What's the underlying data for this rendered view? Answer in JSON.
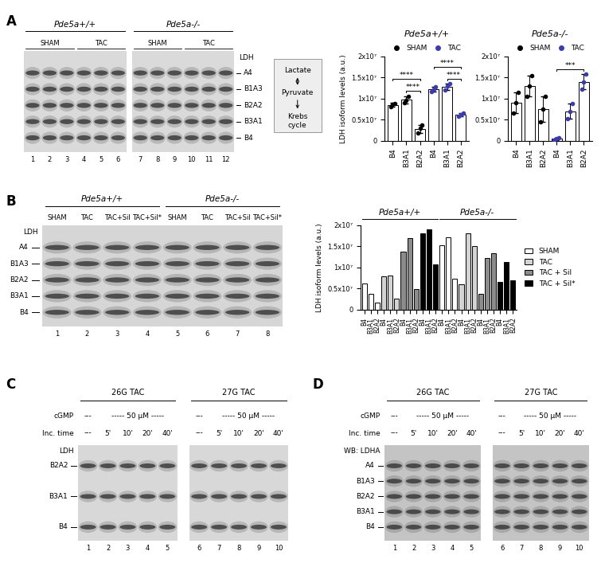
{
  "panel_labels": [
    "A",
    "B",
    "C",
    "D"
  ],
  "pathway": [
    "Lactate",
    "Pyruvate",
    "Krebs cycle"
  ],
  "chart_data": [
    {
      "type": "bar",
      "title": "Pde5a+/+",
      "ylabel": "LDH isoform levels (a.u.)",
      "legend": "top",
      "categories": [
        "B4",
        "B3A1",
        "B2A2",
        "B4",
        "B3A1",
        "B2A2"
      ],
      "ylim": [
        0,
        20000000
      ],
      "yticks": [
        0,
        {
          "value": 5000000,
          "label": "0.5x10⁷"
        },
        {
          "value": 10000000,
          "label": "1x10⁷"
        },
        {
          "value": 15000000,
          "label": "1.5x10⁷"
        },
        {
          "value": 20000000,
          "label": "2x10⁷"
        }
      ],
      "series": [
        {
          "name": "SHAM",
          "color": "#000000",
          "marker": "circle",
          "values": [
            8500000,
            9700000,
            2800000,
            null,
            null,
            null
          ],
          "errors": [
            500000,
            800000,
            900000,
            null,
            null,
            null
          ],
          "points": [
            [
              8000000,
              8600000,
              8900000
            ],
            [
              9000000,
              9500000,
              10600000
            ],
            [
              1800000,
              2900000,
              3700000
            ],
            null,
            null,
            null
          ]
        },
        {
          "name": "TAC",
          "color": "#3b3bb3",
          "marker": "circle",
          "values": [
            null,
            null,
            null,
            12200000,
            12800000,
            6200000
          ],
          "errors": [
            null,
            null,
            null,
            600000,
            700000,
            400000
          ],
          "points": [
            null,
            null,
            null,
            [
              11600000,
              12200000,
              12800000
            ],
            [
              12000000,
              13000000,
              13500000
            ],
            [
              5800000,
              6100000,
              6600000
            ]
          ]
        }
      ],
      "annotations": [
        {
          "text": "****",
          "from": 0,
          "to": 2
        },
        {
          "text": "****",
          "from": 1,
          "to": 2
        },
        {
          "text": "****",
          "from": 3,
          "to": 5
        },
        {
          "text": "****",
          "from": 4,
          "to": 5
        }
      ]
    },
    {
      "type": "bar",
      "title": "Pde5a-/-",
      "legend": "top",
      "categories": [
        "B4",
        "B3A1",
        "B2A2",
        "B4",
        "B3A1",
        "B2A2"
      ],
      "ylim": [
        0,
        20000000
      ],
      "yticks": [
        0,
        {
          "value": 5000000,
          "label": "0.5x10⁷"
        },
        {
          "value": 10000000,
          "label": "1x10⁷"
        },
        {
          "value": 15000000,
          "label": "1.5x10⁷"
        },
        {
          "value": 20000000,
          "label": "2x10⁷"
        }
      ],
      "series": [
        {
          "name": "SHAM",
          "color": "#000000",
          "marker": "circle",
          "values": [
            9000000,
            13000000,
            7500000,
            null,
            null,
            null
          ],
          "errors": [
            2500000,
            2500000,
            3000000,
            null,
            null,
            null
          ],
          "points": [
            [
              6500000,
              9000000,
              11500000
            ],
            [
              10500000,
              13000000,
              15500000
            ],
            [
              4500000,
              7500000,
              10500000
            ],
            null,
            null,
            null
          ]
        },
        {
          "name": "TAC",
          "color": "#3b3bb3",
          "marker": "circle",
          "values": [
            null,
            null,
            null,
            500000,
            7000000,
            14000000
          ],
          "errors": [
            null,
            null,
            null,
            300000,
            1800000,
            1800000
          ],
          "points": [
            null,
            null,
            null,
            [
              200000,
              500000,
              800000
            ],
            [
              5200000,
              7000000,
              8800000
            ],
            [
              12200000,
              14000000,
              15800000
            ]
          ]
        }
      ],
      "annotations": [
        {
          "text": "***",
          "from": 3,
          "to": 5
        }
      ]
    },
    {
      "type": "bar",
      "ylabel": "LDH isoform levels (a.u.)",
      "legend": "right",
      "categories": [
        "B4",
        "B3A1",
        "B2A2",
        "B4",
        "B3A1",
        "B2A2",
        "B4",
        "B3A1",
        "B2A2",
        "B4",
        "B3A1",
        "B2A2",
        "B4",
        "B3A1",
        "B2A2",
        "B4",
        "B3A1",
        "B2A2",
        "B4",
        "B3A1",
        "B2A2",
        "B4",
        "B3A1",
        "B2A2"
      ],
      "groups": [
        {
          "name": "Pde5a+/+",
          "from": 0,
          "to": 11
        },
        {
          "name": "Pde5a-/-",
          "from": 12,
          "to": 23
        }
      ],
      "ylim": [
        0,
        20000000
      ],
      "yticks": [
        0,
        {
          "value": 5000000,
          "label": "0.5x10⁷"
        },
        {
          "value": 10000000,
          "label": "1x10⁷"
        },
        {
          "value": 15000000,
          "label": "1.5x10⁷"
        },
        {
          "value": 20000000,
          "label": "2x10⁷"
        }
      ],
      "series": [
        {
          "name": "SHAM",
          "color": "#ffffff",
          "values": [
            6200000,
            3700000,
            1700000,
            null,
            null,
            null,
            null,
            null,
            null,
            null,
            null,
            null,
            15200000,
            17200000,
            7300000,
            null,
            null,
            null,
            null,
            null,
            null,
            null,
            null,
            null
          ]
        },
        {
          "name": "TAC",
          "color": "#d3d3d3",
          "values": [
            null,
            null,
            null,
            7800000,
            8000000,
            2700000,
            null,
            null,
            null,
            null,
            null,
            null,
            null,
            null,
            null,
            6000000,
            18000000,
            15000000,
            null,
            null,
            null,
            null,
            null,
            null
          ]
        },
        {
          "name": "TAC + Sil",
          "color": "#8c8c8c",
          "values": [
            null,
            null,
            null,
            null,
            null,
            null,
            13700000,
            17000000,
            4800000,
            null,
            null,
            null,
            null,
            null,
            null,
            null,
            null,
            null,
            3700000,
            12200000,
            13300000,
            null,
            null,
            null
          ]
        },
        {
          "name": "TAC + Sil*",
          "color": "#000000",
          "values": [
            null,
            null,
            null,
            null,
            null,
            null,
            null,
            null,
            null,
            18000000,
            19000000,
            10700000,
            null,
            null,
            null,
            null,
            null,
            null,
            null,
            null,
            null,
            6500000,
            11200000,
            7000000
          ]
        }
      ]
    }
  ],
  "gels": [
    {
      "top_label": "LDH",
      "bands": [
        "A4",
        "B1A3",
        "B2A2",
        "B3A1",
        "B4"
      ],
      "groups": [
        {
          "name": "Pde5a+/+",
          "lanes": [
            1,
            2,
            3,
            4,
            5,
            6
          ],
          "conditions": [
            {
              "name": "SHAM",
              "lanes": [
                1,
                2,
                3
              ]
            },
            {
              "name": "TAC",
              "lanes": [
                4,
                5,
                6
              ]
            }
          ]
        },
        {
          "name": "Pde5a-/-",
          "lanes": [
            7,
            8,
            9,
            10,
            11,
            12
          ],
          "conditions": [
            {
              "name": "SHAM",
              "lanes": [
                7,
                8,
                9
              ]
            },
            {
              "name": "TAC",
              "lanes": [
                10,
                11,
                12
              ]
            }
          ]
        }
      ]
    },
    {
      "top_label": "LDH",
      "bands": [
        "A4",
        "B1A3",
        "B2A2",
        "B3A1",
        "B4"
      ],
      "groups": [
        {
          "name": "Pde5a+/+",
          "lanes": [
            1,
            2,
            3,
            4
          ],
          "conditions": [
            {
              "name": "SHAM",
              "lanes": [
                1
              ]
            },
            {
              "name": "TAC",
              "lanes": [
                2
              ]
            },
            {
              "name": "TAC+Sil",
              "lanes": [
                3
              ]
            },
            {
              "name": "TAC+Sil*",
              "lanes": [
                4
              ]
            }
          ]
        },
        {
          "name": "Pde5a-/-",
          "lanes": [
            5,
            6,
            7,
            8
          ],
          "conditions": [
            {
              "name": "SHAM",
              "lanes": [
                5
              ]
            },
            {
              "name": "TAC",
              "lanes": [
                6
              ]
            },
            {
              "name": "TAC+Sil",
              "lanes": [
                7
              ]
            },
            {
              "name": "TAC+Sil*",
              "lanes": [
                8
              ]
            }
          ]
        }
      ]
    },
    {
      "top_label": "LDH",
      "bands": [
        "B2A2",
        "B3A1",
        "B4"
      ],
      "row_labels": [
        "cGMP",
        "Inc. time"
      ],
      "groups": [
        {
          "name": "26G TAC",
          "lanes": [
            1,
            2,
            3,
            4,
            5
          ],
          "rows": [
            [
              {
                "text": "---",
                "lanes": [
                  1
                ]
              },
              {
                "text": "----- 50 µM -----",
                "lanes": [
                  2,
                  3,
                  4,
                  5
                ]
              }
            ],
            [
              {
                "text": "---",
                "lanes": [
                  1
                ]
              },
              {
                "text": "5'",
                "lanes": [
                  2
                ]
              },
              {
                "text": "10'",
                "lanes": [
                  3
                ]
              },
              {
                "text": "20'",
                "lanes": [
                  4
                ]
              },
              {
                "text": "40'",
                "lanes": [
                  5
                ]
              }
            ]
          ]
        },
        {
          "name": "27G TAC",
          "lanes": [
            6,
            7,
            8,
            9,
            10
          ],
          "rows": [
            [
              {
                "text": "---",
                "lanes": [
                  6
                ]
              },
              {
                "text": "----- 50 µM -----",
                "lanes": [
                  7,
                  8,
                  9,
                  10
                ]
              }
            ],
            [
              {
                "text": "---",
                "lanes": [
                  6
                ]
              },
              {
                "text": "5'",
                "lanes": [
                  7
                ]
              },
              {
                "text": "10'",
                "lanes": [
                  8
                ]
              },
              {
                "text": "20'",
                "lanes": [
                  9
                ]
              },
              {
                "text": "40'",
                "lanes": [
                  10
                ]
              }
            ]
          ]
        }
      ]
    },
    {
      "top_label": "WB: LDHA",
      "bands": [
        "A4",
        "B1A3",
        "B2A2",
        "B3A1",
        "B4"
      ],
      "row_labels": [
        "cGMP",
        "Inc. time"
      ],
      "groups": [
        {
          "name": "26G TAC",
          "lanes": [
            1,
            2,
            3,
            4,
            5
          ],
          "rows": [
            [
              {
                "text": "---",
                "lanes": [
                  1
                ]
              },
              {
                "text": "----- 50 µM -----",
                "lanes": [
                  2,
                  3,
                  4,
                  5
                ]
              }
            ],
            [
              {
                "text": "---",
                "lanes": [
                  1
                ]
              },
              {
                "text": "5'",
                "lanes": [
                  2
                ]
              },
              {
                "text": "10'",
                "lanes": [
                  3
                ]
              },
              {
                "text": "20'",
                "lanes": [
                  4
                ]
              },
              {
                "text": "40'",
                "lanes": [
                  5
                ]
              }
            ]
          ]
        },
        {
          "name": "27G TAC",
          "lanes": [
            6,
            7,
            8,
            9,
            10
          ],
          "rows": [
            [
              {
                "text": "---",
                "lanes": [
                  6
                ]
              },
              {
                "text": "----- 50 µM -----",
                "lanes": [
                  7,
                  8,
                  9,
                  10
                ]
              }
            ],
            [
              {
                "text": "---",
                "lanes": [
                  6
                ]
              },
              {
                "text": "5'",
                "lanes": [
                  7
                ]
              },
              {
                "text": "10'",
                "lanes": [
                  8
                ]
              },
              {
                "text": "20'",
                "lanes": [
                  9
                ]
              },
              {
                "text": "40'",
                "lanes": [
                  10
                ]
              }
            ]
          ]
        }
      ]
    }
  ]
}
